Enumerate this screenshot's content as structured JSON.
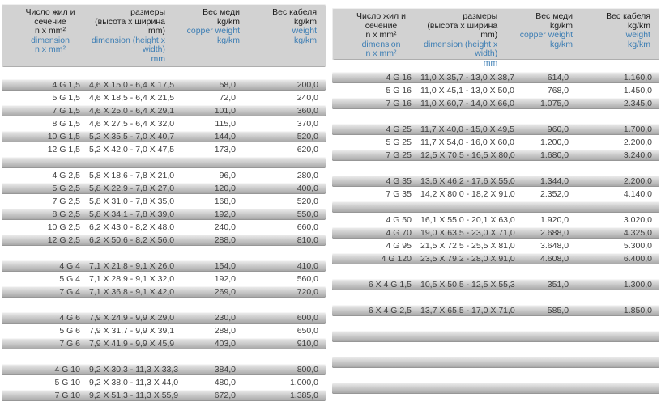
{
  "colors": {
    "header_bg": "#d2d2d2",
    "row_gradient_top": "#f0f0f0",
    "row_gradient_bottom": "#a3a3a3",
    "english_text_blue": "#3d7eb4",
    "body_text": "#3f3f3f"
  },
  "tables": [
    {
      "name": "cable-spec-table-left",
      "header": {
        "c1": {
          "ru": [
            "Число жил и",
            "сечение",
            "n x mm²"
          ],
          "en": [
            "dimension",
            "n x mm²"
          ]
        },
        "c2": {
          "ru": [
            "размеры",
            "(высота x ширина",
            "mm)"
          ],
          "en": [
            "dimension (height x",
            "width)",
            "mm"
          ]
        },
        "c3": {
          "ru": [
            "Вес меди",
            "kg/km"
          ],
          "en": [
            "copper weight",
            "kg/km"
          ]
        },
        "c4": {
          "ru": [
            "Вес кабеля",
            "kg/km"
          ],
          "en": [
            "weight",
            "kg/km"
          ]
        }
      },
      "rows": [
        {
          "size": "4 G 1,5",
          "dim": "4,6 X 15,0 - 6,4 X 17,5",
          "copper": "58,0",
          "weight": "200,0"
        },
        {
          "size": "5 G 1,5",
          "dim": "4,6 X 18,5 - 6,4 X 21,5",
          "copper": "72,0",
          "weight": "240,0"
        },
        {
          "size": "7 G 1,5",
          "dim": "4,6 X 25,0 - 6,4 X 29,1",
          "copper": "101,0",
          "weight": "360,0"
        },
        {
          "size": "8 G 1,5",
          "dim": "4,6 X 27,5 - 6,4 X 32,0",
          "copper": "115,0",
          "weight": "370,0"
        },
        {
          "size": "10 G 1,5",
          "dim": "5,2 X 35,5 - 7,0 X 40,7",
          "copper": "144,0",
          "weight": "520,0"
        },
        {
          "size": "12 G 1,5",
          "dim": "5,2 X 42,0 - 7,0 X 47,5",
          "copper": "173,0",
          "weight": "620,0"
        },
        {},
        {
          "size": "4 G 2,5",
          "dim": "5,8 X 18,6 - 7,8 X 21,0",
          "copper": "96,0",
          "weight": "280,0"
        },
        {
          "size": "5 G 2,5",
          "dim": "5,8 X 22,9 - 7,8 X 27,0",
          "copper": "120,0",
          "weight": "400,0"
        },
        {
          "size": "7 G 2,5",
          "dim": "5,8 X 31,0 - 7,8 X 35,0",
          "copper": "168,0",
          "weight": "520,0"
        },
        {
          "size": "8 G 2,5",
          "dim": "5,8 X 34,1 - 7,8 X 39,0",
          "copper": "192,0",
          "weight": "550,0"
        },
        {
          "size": "10 G 2,5",
          "dim": "6,2 X 43,0 - 8,2 X 48,0",
          "copper": "240,0",
          "weight": "660,0"
        },
        {
          "size": "12 G 2,5",
          "dim": "6,2 X 50,6 - 8,2 X 56,0",
          "copper": "288,0",
          "weight": "810,0"
        },
        {},
        {
          "size": "4 G 4",
          "dim": "7,1 X 21,8 - 9,1 X 26,0",
          "copper": "154,0",
          "weight": "410,0"
        },
        {
          "size": "5 G 4",
          "dim": "7,1 X 28,9 - 9,1 X 32,0",
          "copper": "192,0",
          "weight": "560,0"
        },
        {
          "size": "7 G 4",
          "dim": "7,1 X 36,8 - 9,1 X 42,0",
          "copper": "269,0",
          "weight": "720,0"
        },
        {},
        {
          "size": "4 G 6",
          "dim": "7,9 X 24,9 - 9,9 X 29,0",
          "copper": "230,0",
          "weight": "600,0"
        },
        {
          "size": "5 G 6",
          "dim": "7,9 X 31,7 - 9,9 X 39,1",
          "copper": "288,0",
          "weight": "650,0"
        },
        {
          "size": "7 G 6",
          "dim": "7,9 X 41,9 - 9,9 X 45,9",
          "copper": "403,0",
          "weight": "910,0"
        },
        {},
        {
          "size": "4 G 10",
          "dim": "9,2 X 30,3 - 11,3 X 33,3",
          "copper": "384,0",
          "weight": "800,0"
        },
        {
          "size": "5 G 10",
          "dim": "9,2 X 38,0 - 11,3 X 44,0",
          "copper": "480,0",
          "weight": "1.000,0"
        },
        {
          "size": "7 G 10",
          "dim": "9,2 X 51,3 - 11,3 X 55,9",
          "copper": "672,0",
          "weight": "1.385,0"
        }
      ]
    },
    {
      "name": "cable-spec-table-right",
      "header": {
        "c1": {
          "ru": [
            "Число жил и",
            "сечение",
            "n x mm²"
          ],
          "en": [
            "dimension",
            "n x mm²"
          ]
        },
        "c2": {
          "ru": [
            "размеры",
            "(высота x ширина mm)"
          ],
          "en": [
            "dimension (height x",
            "width)",
            "mm"
          ]
        },
        "c3": {
          "ru": [
            "Вес меди",
            "kg/km"
          ],
          "en": [
            "copper weight",
            "kg/km"
          ]
        },
        "c4": {
          "ru": [
            "Вес кабеля",
            "kg/km"
          ],
          "en": [
            "weight",
            "kg/km"
          ]
        }
      },
      "rows": [
        {
          "size": "4 G 16",
          "dim": "11,0 X 35,7 - 13,0 X 38,7",
          "copper": "614,0",
          "weight": "1.160,0"
        },
        {
          "size": "5 G 16",
          "dim": "11,0 X 45,1 - 13,0 X 50,0",
          "copper": "768,0",
          "weight": "1.450,0"
        },
        {
          "size": "7 G 16",
          "dim": "11,0 X 60,7 - 14,0 X 66,0",
          "copper": "1.075,0",
          "weight": "2.345,0"
        },
        {},
        {
          "size": "4 G 25",
          "dim": "11,7 X 40,0 - 15,0 X 49,5",
          "copper": "960,0",
          "weight": "1.700,0"
        },
        {
          "size": "5 G 25",
          "dim": "11,7 X 54,0 - 16,0 X 60,0",
          "copper": "1.200,0",
          "weight": "2.200,0"
        },
        {
          "size": "7 G 25",
          "dim": "12,5 X 70,5 - 16,5 X 80,0",
          "copper": "1.680,0",
          "weight": "3.240,0"
        },
        {},
        {
          "size": "4 G 35",
          "dim": "13,6 X 46,2 - 17,6 X 55,0",
          "copper": "1.344,0",
          "weight": "2.200,0"
        },
        {
          "size": "7 G 35",
          "dim": "14,2 X 80,0 - 18,2 X 91,0",
          "copper": "2.352,0",
          "weight": "4.140,0"
        },
        {},
        {
          "size": "4 G 50",
          "dim": "16,1 X 55,0 - 20,1 X 63,0",
          "copper": "1.920,0",
          "weight": "3.020,0"
        },
        {
          "size": "4 G 70",
          "dim": "19,0 X 63,5 - 23,0 X 71,0",
          "copper": "2.688,0",
          "weight": "4.325,0"
        },
        {
          "size": "4 G 95",
          "dim": "21,5 X 72,5 - 25,5 X 81,0",
          "copper": "3.648,0",
          "weight": "5.300,0"
        },
        {
          "size": "4 G 120",
          "dim": "23,5 X 79,2 - 28,0 X 91,0",
          "copper": "4.608,0",
          "weight": "6.400,0"
        },
        {},
        {
          "size": "6 X 4 G 1,5",
          "dim": "10,5 X 50,5 - 12,5 X 55,3",
          "copper": "351,0",
          "weight": "1.300,0"
        },
        {},
        {
          "size": "6 X 4 G 2,5",
          "dim": "13,7 X 65,5 - 17,0 X 71,0",
          "copper": "585,0",
          "weight": "1.850,0"
        },
        {},
        {},
        {},
        {},
        {},
        {}
      ]
    }
  ]
}
